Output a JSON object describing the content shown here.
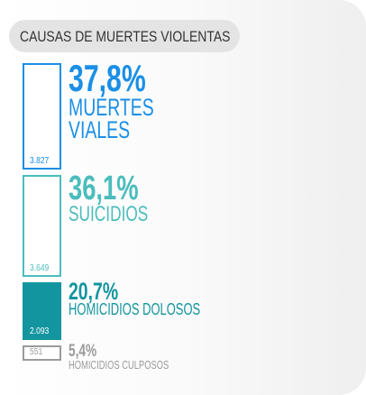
{
  "chart_data": {
    "type": "stacked-bar",
    "title": "CAUSAS DE MUERTES VIOLENTAS",
    "categories": [
      "MUERTES VIALES",
      "SUICIDIOS",
      "HOMICIDIOS DOLOSOS",
      "HOMICIDIOS CULPOSOS"
    ],
    "values": [
      37.8,
      36.1,
      20.7,
      5.4
    ],
    "value_labels": [
      "37,8%",
      "36,1%",
      "20,7%",
      "5,4%"
    ],
    "counts": [
      3827,
      3649,
      2093,
      551
    ],
    "count_labels": [
      "3.827",
      "3.649",
      "2.093",
      "551"
    ],
    "colors": [
      "#1b8fe6",
      "#4cbcbc",
      "#13959f",
      "#9a9a9a"
    ],
    "filled": [
      false,
      false,
      true,
      false
    ]
  }
}
